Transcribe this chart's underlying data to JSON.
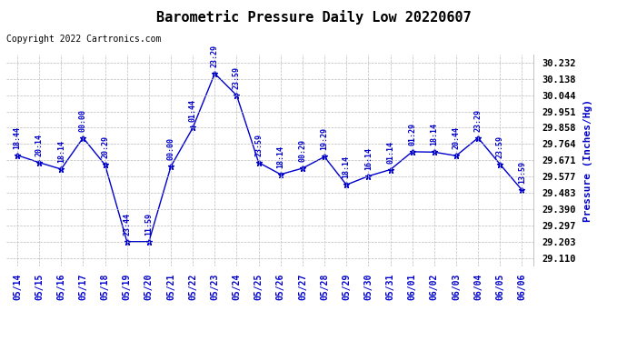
{
  "title": "Barometric Pressure Daily Low 20220607",
  "ylabel": "Pressure (Inches/Hg)",
  "copyright": "Copyright 2022 Cartronics.com",
  "background_color": "#ffffff",
  "line_color": "#0000cc",
  "text_color": "#0000cc",
  "ylim_min": 29.063,
  "ylim_max": 30.279,
  "yticks": [
    29.11,
    29.203,
    29.297,
    29.39,
    29.483,
    29.577,
    29.671,
    29.764,
    29.858,
    29.951,
    30.044,
    30.138,
    30.232
  ],
  "dates": [
    "05/14",
    "05/15",
    "05/16",
    "05/17",
    "05/18",
    "05/19",
    "05/20",
    "05/21",
    "05/22",
    "05/23",
    "05/24",
    "05/25",
    "05/26",
    "05/27",
    "05/28",
    "05/29",
    "05/30",
    "05/31",
    "06/01",
    "06/02",
    "06/03",
    "06/04",
    "06/05",
    "06/06"
  ],
  "values": [
    29.7,
    29.658,
    29.62,
    29.8,
    29.645,
    29.203,
    29.203,
    29.635,
    29.858,
    30.17,
    30.044,
    29.658,
    29.59,
    29.625,
    29.691,
    29.53,
    29.58,
    29.617,
    29.72,
    29.718,
    29.697,
    29.8,
    29.648,
    29.5
  ],
  "annotations": [
    "18:44",
    "20:14",
    "18:14",
    "00:00",
    "20:29",
    "23:44",
    "11:59",
    "00:00",
    "01:44",
    "23:29",
    "23:59",
    "23:59",
    "18:14",
    "00:29",
    "19:29",
    "18:14",
    "16:14",
    "01:14",
    "01:29",
    "18:14",
    "20:44",
    "23:29",
    "23:59",
    "13:59"
  ]
}
